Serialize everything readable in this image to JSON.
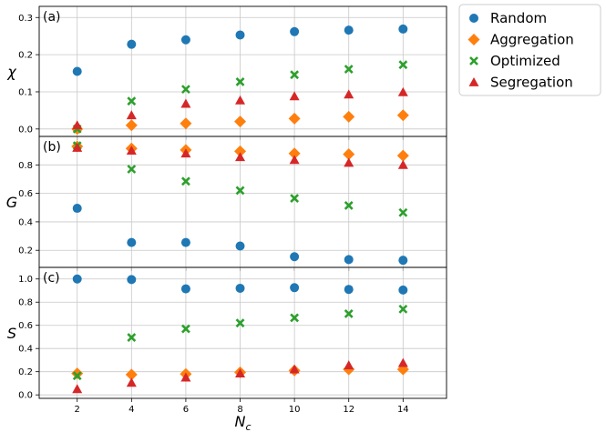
{
  "chart_data": {
    "type": "scatter",
    "x": [
      2,
      4,
      6,
      8,
      10,
      12,
      14
    ],
    "xlabel": "N_c",
    "xlim": [
      0.6,
      15.6
    ],
    "xticks": [
      "2",
      "4",
      "6",
      "8",
      "10",
      "12",
      "14"
    ],
    "legend": {
      "placement": "outside-top-right",
      "entries": [
        "Random",
        "Aggregation",
        "Optimized",
        "Segregation"
      ]
    },
    "colors": {
      "Random": "#1f77b4",
      "Aggregation": "#ff7f0e",
      "Optimized": "#2ca02c",
      "Segregation": "#d62728"
    },
    "markers": {
      "Random": "circle",
      "Aggregation": "diamond",
      "Optimized": "x",
      "Segregation": "triangle"
    },
    "panels": [
      {
        "label": "(a)",
        "ylabel": "χ",
        "ylim": [
          -0.02,
          0.33
        ],
        "yticks": [
          0.0,
          0.1,
          0.2,
          0.3
        ],
        "yticklabels": [
          "0.0",
          "0.1",
          "0.2",
          "0.3"
        ],
        "series": [
          {
            "name": "Random",
            "values": [
              0.155,
              0.228,
              0.24,
              0.253,
              0.262,
              0.266,
              0.269
            ]
          },
          {
            "name": "Aggregation",
            "values": [
              0.0,
              0.01,
              0.015,
              0.02,
              0.028,
              0.033,
              0.037
            ]
          },
          {
            "name": "Optimized",
            "values": [
              0.0,
              0.075,
              0.107,
              0.127,
              0.146,
              0.161,
              0.173
            ]
          },
          {
            "name": "Segregation",
            "values": [
              0.01,
              0.037,
              0.068,
              0.077,
              0.088,
              0.093,
              0.099
            ]
          }
        ]
      },
      {
        "label": "(b)",
        "ylabel": "G",
        "ylim": [
          0.08,
          1.0
        ],
        "yticks": [
          0.2,
          0.4,
          0.6,
          0.8
        ],
        "yticklabels": [
          "0.2",
          "0.4",
          "0.6",
          "0.8"
        ],
        "series": [
          {
            "name": "Random",
            "values": [
              0.495,
              0.255,
              0.255,
              0.23,
              0.155,
              0.135,
              0.13
            ]
          },
          {
            "name": "Aggregation",
            "values": [
              0.93,
              0.915,
              0.905,
              0.895,
              0.88,
              0.875,
              0.865
            ]
          },
          {
            "name": "Optimized",
            "values": [
              0.935,
              0.77,
              0.685,
              0.62,
              0.565,
              0.515,
              0.465
            ]
          },
          {
            "name": "Segregation",
            "values": [
              0.92,
              0.9,
              0.88,
              0.855,
              0.835,
              0.815,
              0.8
            ]
          }
        ]
      },
      {
        "label": "(c)",
        "ylabel": "S",
        "ylim": [
          -0.03,
          1.1
        ],
        "yticks": [
          0.0,
          0.2,
          0.4,
          0.6,
          0.8,
          1.0
        ],
        "yticklabels": [
          "0.0",
          "0.2",
          "0.4",
          "0.6",
          "0.8",
          "1.0"
        ],
        "series": [
          {
            "name": "Random",
            "values": [
              1.0,
              0.995,
              0.915,
              0.92,
              0.925,
              0.91,
              0.905
            ]
          },
          {
            "name": "Aggregation",
            "values": [
              0.185,
              0.175,
              0.18,
              0.195,
              0.21,
              0.22,
              0.22
            ]
          },
          {
            "name": "Optimized",
            "values": [
              0.165,
              0.495,
              0.57,
              0.62,
              0.665,
              0.7,
              0.74
            ]
          },
          {
            "name": "Segregation",
            "values": [
              0.05,
              0.105,
              0.15,
              0.185,
              0.22,
              0.255,
              0.275
            ]
          }
        ]
      }
    ]
  }
}
